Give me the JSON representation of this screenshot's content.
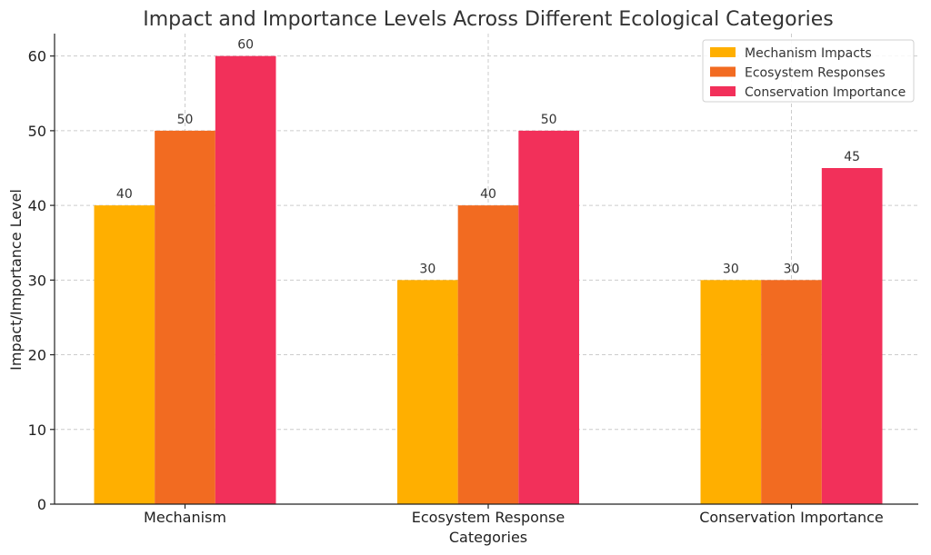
{
  "chart_data": {
    "type": "bar",
    "title": "Impact and Importance Levels Across Different Ecological Categories",
    "xlabel": "Categories",
    "ylabel": "Impact/Importance Level",
    "categories": [
      "Mechanism",
      "Ecosystem Response",
      "Conservation Importance"
    ],
    "series": [
      {
        "name": "Mechanism Impacts",
        "values": [
          40,
          30,
          30
        ],
        "color": "#FFAF00"
      },
      {
        "name": "Ecosystem Responses",
        "values": [
          50,
          40,
          30
        ],
        "color": "#F26B21"
      },
      {
        "name": "Conservation Importance",
        "values": [
          60,
          50,
          45
        ],
        "color": "#F2305A"
      }
    ],
    "ylim": [
      0,
      63
    ],
    "yticks": [
      0,
      10,
      20,
      30,
      40,
      50,
      60
    ],
    "grid": true,
    "legend_position": "top-right",
    "data_labels": true
  }
}
